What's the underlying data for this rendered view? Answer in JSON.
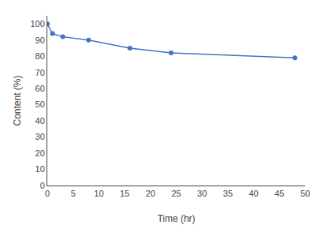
{
  "chart_data": {
    "type": "line",
    "x": [
      0,
      1,
      3,
      8,
      16,
      24,
      48
    ],
    "values": [
      100,
      94,
      92,
      90,
      85,
      82,
      79
    ],
    "color": "#4472C4",
    "marker": "circle",
    "xlabel": "Time (hr)",
    "ylabel": "Content (%)",
    "xlim": [
      0,
      50
    ],
    "ylim": [
      0,
      105
    ],
    "xticks": [
      0,
      5,
      10,
      15,
      20,
      25,
      30,
      35,
      40,
      45,
      50
    ],
    "yticks": [
      0,
      10,
      20,
      30,
      40,
      50,
      60,
      70,
      80,
      90,
      100
    ],
    "grid": false
  }
}
